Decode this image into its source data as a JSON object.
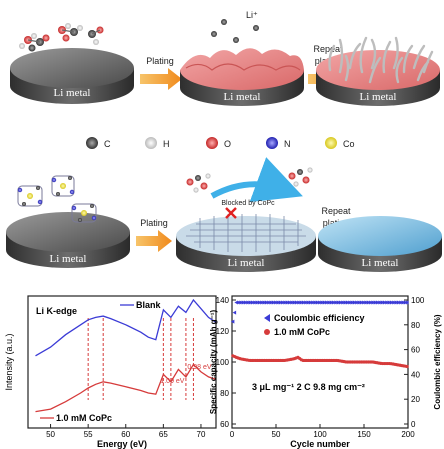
{
  "top_row": {
    "ion_label": "Li⁺",
    "disk_label": "Li metal",
    "arrow1_label": "Plating",
    "arrow2_label_line1": "Repeat",
    "arrow2_label_line2": "plating"
  },
  "legend": {
    "items": [
      {
        "label": "C",
        "color": "#555555"
      },
      {
        "label": "H",
        "color": "#eeeeee"
      },
      {
        "label": "O",
        "color": "#e24a4a"
      },
      {
        "label": "N",
        "color": "#3a3ad8"
      },
      {
        "label": "Co",
        "color": "#f2e84a"
      }
    ]
  },
  "mid_row": {
    "disk_label": "Li metal",
    "arrow1_label": "Plating",
    "arrow2_label_line1": "Repeat",
    "arrow2_label_line2": "plating",
    "blocked_label": "Blocked by CoPc"
  },
  "xas": {
    "edge_label": "Li K-edge",
    "ylabel": "Intensity (a.u.)",
    "xlabel": "Energy (eV)",
    "xticks": [
      "50",
      "55",
      "60",
      "65",
      "70"
    ],
    "legend_blank": "Blank",
    "legend_copc": "1.0 mM CoPc",
    "ann1": "1.09 eV",
    "ann2": "0.98 eV",
    "blank_color": "#3b3bd6",
    "copc_color": "#d63b3b"
  },
  "cycling": {
    "ylabel_left": "Specific capacity (mAh g⁻¹)",
    "ylabel_right": "Coulombic efficiency (%)",
    "xlabel": "Cycle number",
    "xticks": [
      "0",
      "50",
      "100",
      "150",
      "200"
    ],
    "yticks_left": [
      "60",
      "80",
      "100",
      "120",
      "140"
    ],
    "yticks_right": [
      "0",
      "20",
      "40",
      "60",
      "80",
      "100"
    ],
    "legend_ce": "Coulombic efficiency",
    "legend_copc": "1.0 mM CoPc",
    "conditions": "3 μL mg⁻¹   2 C   9.8 mg cm⁻²"
  },
  "chart_data": [
    {
      "type": "line",
      "title": "",
      "xlabel": "Energy (eV)",
      "ylabel": "Intensity (a.u.)",
      "xlim": [
        47,
        72
      ],
      "series": [
        {
          "name": "Blank",
          "x": [
            48,
            50,
            52,
            54,
            55,
            56,
            57,
            58,
            60,
            62,
            63,
            64,
            65,
            66,
            67,
            68,
            69,
            70,
            71,
            72
          ],
          "y": [
            0.55,
            0.62,
            0.72,
            0.8,
            0.84,
            0.86,
            0.87,
            0.85,
            0.8,
            0.74,
            0.7,
            0.68,
            0.92,
            0.86,
            0.95,
            0.9,
            1.0,
            0.93,
            0.86,
            0.82
          ]
        },
        {
          "name": "1.0 mM CoPc",
          "x": [
            48,
            50,
            52,
            54,
            55,
            56,
            57,
            58,
            60,
            62,
            63,
            64,
            65,
            66,
            67,
            68,
            69,
            70,
            71,
            72
          ],
          "y": [
            0.1,
            0.12,
            0.18,
            0.25,
            0.29,
            0.32,
            0.34,
            0.33,
            0.3,
            0.27,
            0.25,
            0.24,
            0.4,
            0.34,
            0.44,
            0.38,
            0.48,
            0.42,
            0.38,
            0.36
          ]
        }
      ],
      "annotations": [
        "1.09 eV",
        "0.98 eV"
      ],
      "dashed_lines_x": [
        55,
        57,
        65,
        66,
        68,
        69
      ]
    },
    {
      "type": "scatter",
      "title": "",
      "xlabel": "Cycle number",
      "ylabel": "Specific capacity (mAh g⁻¹)",
      "ylabel_right": "Coulombic efficiency (%)",
      "xlim": [
        0,
        200
      ],
      "ylim": [
        60,
        150
      ],
      "ylim_right": [
        0,
        100
      ],
      "series": [
        {
          "name": "Coulombic efficiency",
          "axis": "right",
          "x": [
            1,
            5,
            10,
            20,
            30,
            40,
            50,
            60,
            70,
            80,
            90,
            100,
            110,
            120,
            130,
            140,
            150,
            160,
            170,
            180,
            190,
            200
          ],
          "y": [
            79,
            97,
            98,
            98,
            98,
            98,
            98,
            98,
            98,
            98,
            98,
            98,
            98,
            98,
            98,
            98,
            98,
            98,
            98,
            98,
            98,
            98
          ]
        },
        {
          "name": "1.0 mM CoPc",
          "axis": "left",
          "x": [
            1,
            5,
            10,
            20,
            30,
            40,
            50,
            60,
            70,
            75,
            80,
            90,
            100,
            110,
            120,
            130,
            140,
            150,
            160,
            170,
            180,
            190,
            200
          ],
          "y": [
            104,
            103,
            102,
            101,
            101,
            101,
            101,
            101,
            102,
            103,
            101,
            101,
            101,
            101,
            101,
            100,
            100,
            100,
            100,
            99,
            99,
            98,
            97
          ]
        }
      ]
    }
  ]
}
